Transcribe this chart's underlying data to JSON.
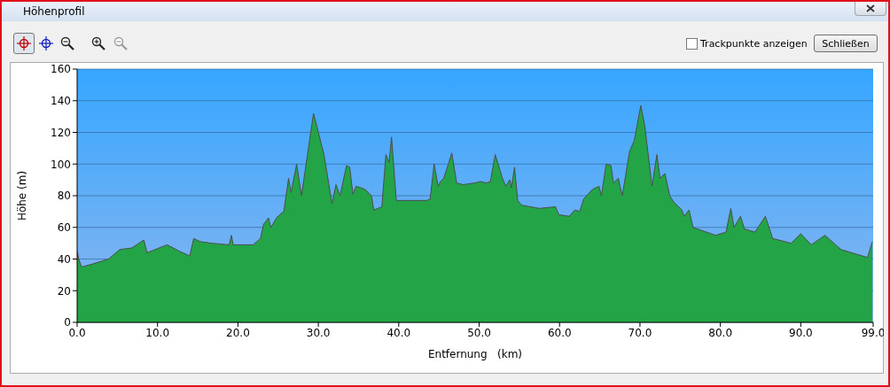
{
  "chart_data": {
    "type": "area",
    "title": "Höhenprofil",
    "xlabel": "Entfernung   (km)",
    "ylabel": "Höhe (m)",
    "x": [
      0,
      0.2,
      0.55,
      2.0,
      3.9,
      5.3,
      6.8,
      8.3,
      8.7,
      11.2,
      12.7,
      14.0,
      14.5,
      15.3,
      16.7,
      18.9,
      19.2,
      19.4,
      21.9,
      22.8,
      23.2,
      23.8,
      24.1,
      24.8,
      25.2,
      25.7,
      26.3,
      26.6,
      27.3,
      27.9,
      29.4,
      30.7,
      31.7,
      32.2,
      32.7,
      33.5,
      33.9,
      34.3,
      34.7,
      35.8,
      36.6,
      36.9,
      37.9,
      38.4,
      38.8,
      39.1,
      39.7,
      43.5,
      43.9,
      44.4,
      44.9,
      45.2,
      45.6,
      46.6,
      47.2,
      48.0,
      49.4,
      50.2,
      50.9,
      51.4,
      52.0,
      52.9,
      53.3,
      53.8,
      54.0,
      54.4,
      54.8,
      55.3,
      57.5,
      59.5,
      59.9,
      61.2,
      61.9,
      62.5,
      63.0,
      64.1,
      64.9,
      65.2,
      65.8,
      66.4,
      66.7,
      67.3,
      67.8,
      68.7,
      69.3,
      70.1,
      70.6,
      71.5,
      72.1,
      72.5,
      73.1,
      73.7,
      74.2,
      75.2,
      75.5,
      76.1,
      76.6,
      77.7,
      79.4,
      80.7,
      81.3,
      81.7,
      82.5,
      83.0,
      84.3,
      85.6,
      86.5,
      88.8,
      90.0,
      91.3,
      93.0,
      95.0,
      98.3,
      98.9
    ],
    "values": [
      45,
      40,
      35,
      37,
      40,
      46,
      47,
      52,
      44,
      49,
      45,
      42,
      53,
      51,
      50,
      49,
      55,
      49,
      49,
      53,
      62,
      66,
      60,
      66,
      68,
      70,
      91,
      82,
      100,
      80,
      132,
      106,
      75,
      87,
      80,
      99,
      98,
      81,
      86,
      84,
      80,
      71,
      73,
      106,
      101,
      117,
      77,
      77,
      78,
      100,
      86,
      89,
      91,
      107,
      88,
      87,
      88,
      89,
      88,
      89,
      106,
      91,
      86,
      90,
      85,
      98,
      77,
      74,
      72,
      73,
      68,
      67,
      71,
      70,
      78,
      84,
      86,
      80,
      100,
      99,
      88,
      91,
      80,
      108,
      115,
      137,
      124,
      86,
      106,
      91,
      94,
      80,
      76,
      71,
      67,
      71,
      60,
      58,
      55,
      57,
      72,
      60,
      67,
      59,
      57,
      67,
      53,
      50,
      56,
      49,
      55,
      46,
      41,
      51
    ],
    "color": "#22a447",
    "xlim": [
      0,
      99
    ],
    "xticks": [
      {
        "value": 0,
        "label": "0.0"
      },
      {
        "value": 10,
        "label": "10.0"
      },
      {
        "value": 20,
        "label": "20.0"
      },
      {
        "value": 30,
        "label": "30.0"
      },
      {
        "value": 40,
        "label": "40.0"
      },
      {
        "value": 50,
        "label": "50.0"
      },
      {
        "value": 60,
        "label": "60.0"
      },
      {
        "value": 70,
        "label": "70.0"
      },
      {
        "value": 80,
        "label": "80.0"
      },
      {
        "value": 90,
        "label": "90.0"
      },
      {
        "value": 99,
        "label": "99.0"
      }
    ],
    "ylim": [
      0,
      160
    ],
    "yticks": [
      0,
      20,
      40,
      60,
      80,
      100,
      120,
      140,
      160
    ],
    "grid": "y",
    "annotations": [
      "Trackpunkte anzeigen",
      "Schließen"
    ]
  }
}
